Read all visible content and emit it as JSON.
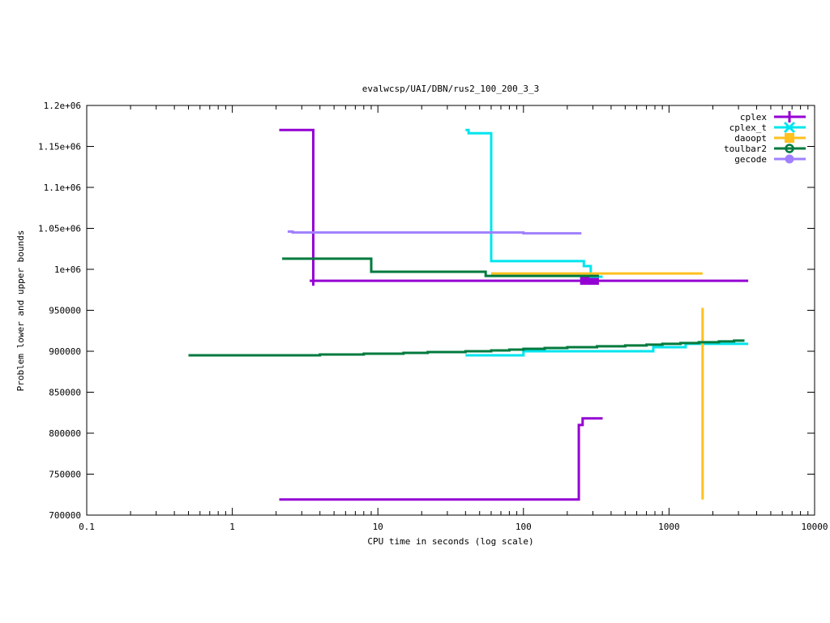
{
  "chart_data": {
    "type": "line",
    "title": "evalwcsp/UAI/DBN/rus2_100_200_3_3",
    "xlabel": "CPU time in seconds (log scale)",
    "ylabel": "Problem lower and upper bounds",
    "xscale": "log",
    "xlim": [
      0.1,
      10000
    ],
    "ylim": [
      700000,
      1200000
    ],
    "xticks": [
      {
        "value": 0.1,
        "label": "0.1"
      },
      {
        "value": 1,
        "label": "1"
      },
      {
        "value": 10,
        "label": "10"
      },
      {
        "value": 100,
        "label": "100"
      },
      {
        "value": 1000,
        "label": "1000"
      },
      {
        "value": 10000,
        "label": "10000"
      }
    ],
    "yticks": [
      {
        "value": 700000,
        "label": "700000"
      },
      {
        "value": 750000,
        "label": "750000"
      },
      {
        "value": 800000,
        "label": "800000"
      },
      {
        "value": 850000,
        "label": "850000"
      },
      {
        "value": 900000,
        "label": "900000"
      },
      {
        "value": 950000,
        "label": "950000"
      },
      {
        "value": 1000000,
        "label": "1e+06"
      },
      {
        "value": 1050000,
        "label": "1.05e+06"
      },
      {
        "value": 1100000,
        "label": "1.1e+06"
      },
      {
        "value": 1150000,
        "label": "1.15e+06"
      },
      {
        "value": 1200000,
        "label": "1.2e+06"
      }
    ],
    "grid": false,
    "legend_position": "top-right",
    "series": [
      {
        "name": "cplex",
        "color": "#9400d3",
        "marker": "plus",
        "lines": [
          [
            [
              2.1,
              1170000
            ],
            [
              3.6,
              1170000
            ],
            [
              3.6,
              980000
            ]
          ],
          [
            [
              3.4,
              986000
            ],
            [
              3500,
              986000
            ]
          ],
          [
            [
              2.1,
              719000
            ],
            [
              240,
              719000
            ],
            [
              240,
              810000
            ],
            [
              255,
              810000
            ],
            [
              255,
              818000
            ],
            [
              350,
              818000
            ]
          ]
        ],
        "legend_marker_points": [
          [
            245,
            987000
          ],
          [
            330,
            987000
          ]
        ]
      },
      {
        "name": "cplex_t",
        "color": "#00e5ee",
        "marker": "cross",
        "lines": [
          [
            [
              40,
              1170000
            ],
            [
              42,
              1170000
            ],
            [
              42,
              1166000
            ],
            [
              60,
              1166000
            ],
            [
              60,
              1010000
            ],
            [
              260,
              1010000
            ],
            [
              260,
              1004000
            ],
            [
              290,
              1004000
            ],
            [
              290,
              991000
            ],
            [
              350,
              991000
            ]
          ],
          [
            [
              40,
              895000
            ],
            [
              100,
              895000
            ],
            [
              100,
              900000
            ],
            [
              780,
              900000
            ],
            [
              780,
              905000
            ],
            [
              1300,
              905000
            ],
            [
              1300,
              909000
            ],
            [
              3500,
              909000
            ]
          ]
        ]
      },
      {
        "name": "daoopt",
        "color": "#ffc020",
        "marker": "square",
        "lines": [
          [
            [
              60,
              995000
            ],
            [
              1700,
              995000
            ]
          ],
          [
            [
              1700,
              719000
            ],
            [
              1700,
              953000
            ]
          ]
        ]
      },
      {
        "name": "toulbar2",
        "color": "#007a3d",
        "marker": "circle",
        "lines": [
          [
            [
              2.2,
              1013000
            ],
            [
              9,
              1013000
            ],
            [
              9,
              997000
            ],
            [
              55,
              997000
            ],
            [
              55,
              992000
            ],
            [
              330,
              992000
            ]
          ],
          [
            [
              0.5,
              895000
            ],
            [
              4,
              895000
            ],
            [
              4,
              896000
            ],
            [
              8,
              896000
            ],
            [
              8,
              897000
            ],
            [
              15,
              897000
            ],
            [
              15,
              898000
            ],
            [
              22,
              898000
            ],
            [
              22,
              899000
            ],
            [
              40,
              899000
            ],
            [
              40,
              900000
            ],
            [
              60,
              900000
            ],
            [
              60,
              901000
            ],
            [
              80,
              901000
            ],
            [
              80,
              902000
            ],
            [
              100,
              902000
            ],
            [
              100,
              903000
            ],
            [
              140,
              903000
            ],
            [
              140,
              904000
            ],
            [
              200,
              904000
            ],
            [
              200,
              905000
            ],
            [
              320,
              905000
            ],
            [
              320,
              906000
            ],
            [
              500,
              906000
            ],
            [
              500,
              907000
            ],
            [
              700,
              907000
            ],
            [
              700,
              908000
            ],
            [
              900,
              908000
            ],
            [
              900,
              909000
            ],
            [
              1200,
              909000
            ],
            [
              1200,
              910000
            ],
            [
              1600,
              910000
            ],
            [
              1600,
              911000
            ],
            [
              2200,
              911000
            ],
            [
              2200,
              912000
            ],
            [
              2800,
              912000
            ],
            [
              2800,
              913000
            ],
            [
              3300,
              913000
            ]
          ]
        ]
      },
      {
        "name": "gecode",
        "color": "#a080ff",
        "marker": "filled-circle",
        "lines": [
          [
            [
              2.4,
              1046000
            ],
            [
              2.6,
              1046000
            ],
            [
              2.6,
              1045000
            ],
            [
              100,
              1045000
            ],
            [
              100,
              1044000
            ],
            [
              250,
              1044000
            ]
          ]
        ]
      }
    ]
  }
}
